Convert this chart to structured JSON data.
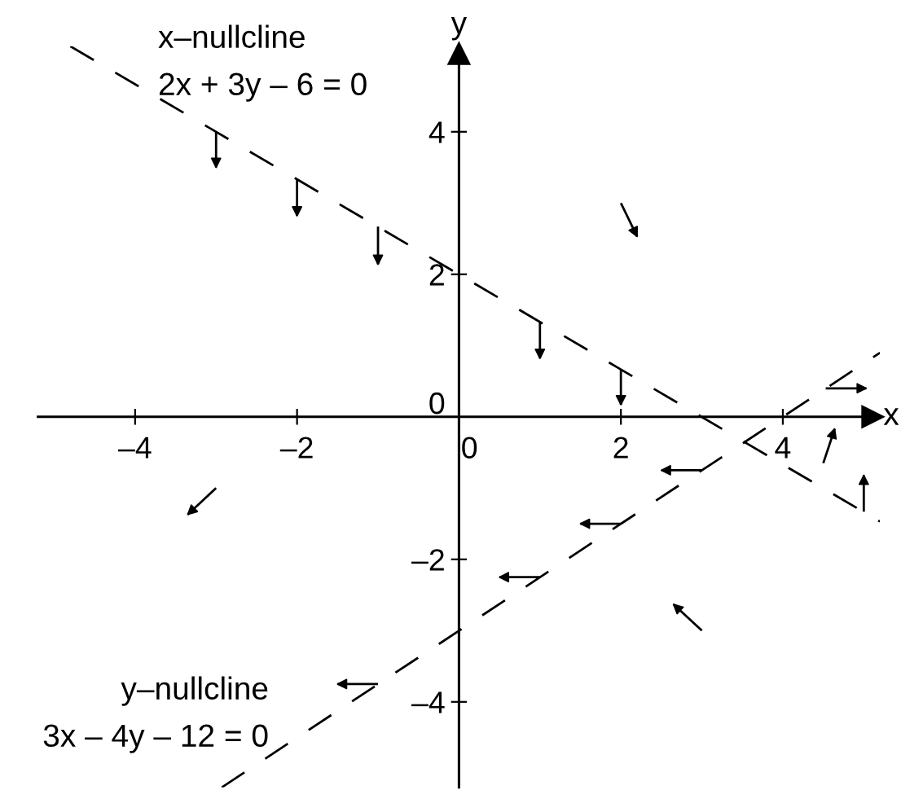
{
  "chart_data": {
    "type": "line",
    "xlabel": "x",
    "ylabel": "y",
    "xlim": [
      -5.2,
      5.2
    ],
    "ylim": [
      -5.2,
      5.2
    ],
    "xticks": [
      {
        "value": -4,
        "label": "–4"
      },
      {
        "value": -2,
        "label": "–2"
      },
      0,
      2,
      4
    ],
    "yticks": [
      {
        "value": -4,
        "label": "–4"
      },
      {
        "value": -2,
        "label": "–2"
      },
      0,
      2,
      4
    ],
    "annotations": [
      "x–nullcline",
      "2x + 3y – 6 = 0",
      "y–nullcline",
      "3x – 4y – 12 = 0"
    ],
    "series": [
      {
        "color": "#000000",
        "line_style": "dashed",
        "x": [
          -4.8,
          5.2
        ],
        "values": [
          5.2,
          -1.47
        ]
      },
      {
        "color": "#000000",
        "line_style": "dashed",
        "x": [
          -2.93,
          5.2
        ],
        "values": [
          -5.2,
          0.9
        ]
      },
      {
        "color": "#000000",
        "x": [
          -3,
          -3
        ],
        "values": [
          4,
          3.5
        ]
      },
      {
        "color": "#000000",
        "x": [
          -2,
          -2
        ],
        "values": [
          3.33,
          2.82
        ]
      },
      {
        "color": "#000000",
        "x": [
          -1,
          -1
        ],
        "values": [
          2.67,
          2.14
        ]
      },
      {
        "color": "#000000",
        "x": [
          1,
          1
        ],
        "values": [
          1.33,
          0.82
        ]
      },
      {
        "color": "#000000",
        "x": [
          2,
          2
        ],
        "values": [
          0.67,
          0.17
        ]
      },
      {
        "color": "#000000",
        "x": [
          2,
          2.2
        ],
        "values": [
          3,
          2.53
        ]
      },
      {
        "color": "#000000",
        "x": [
          4.53,
          5.03
        ],
        "values": [
          0.4,
          0.4
        ]
      },
      {
        "color": "#000000",
        "x": [
          5,
          5
        ],
        "values": [
          -1.33,
          -0.82
        ]
      },
      {
        "color": "#000000",
        "x": [
          4.5,
          4.64
        ],
        "values": [
          -0.65,
          -0.17
        ]
      },
      {
        "color": "#000000",
        "x": [
          3,
          2.5
        ],
        "values": [
          -0.75,
          -0.75
        ]
      },
      {
        "color": "#000000",
        "x": [
          2,
          1.5
        ],
        "values": [
          -1.5,
          -1.5
        ]
      },
      {
        "color": "#000000",
        "x": [
          1,
          0.5
        ],
        "values": [
          -2.25,
          -2.25
        ]
      },
      {
        "color": "#000000",
        "x": [
          3,
          2.65
        ],
        "values": [
          -3,
          -2.63
        ]
      },
      {
        "color": "#000000",
        "x": [
          -1,
          -1.5
        ],
        "values": [
          -3.75,
          -3.75
        ]
      },
      {
        "color": "#000000",
        "x": [
          -3,
          -3.35
        ],
        "values": [
          -1,
          -1.37
        ]
      }
    ]
  }
}
